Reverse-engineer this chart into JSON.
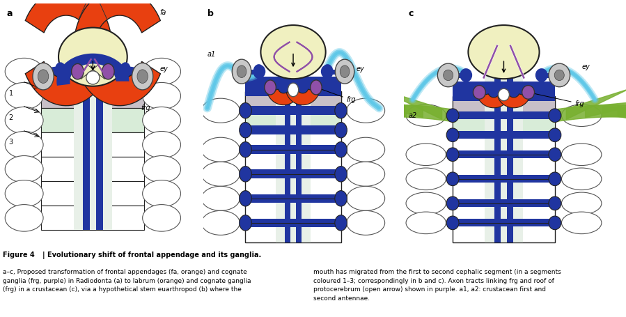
{
  "figure_title": "Figure 4 | Evolutionary shift of frontal appendage and its ganglia.",
  "caption_line1": "a–c, Proposed transformation of frontal appendages (fa, orange) and cognate",
  "caption_line2": "ganglia (frg, purple) in Radiodonta (a) to labrum (orange) and cognate ganglia",
  "caption_line3": "(frg) in a crustacean (c), via a hypothetical stem euarthropod (b) where the",
  "caption_right1": "mouth has migrated from the first to second cephalic segment (in a segments",
  "caption_right2": "coloured 1–3; correspondingly in b and c). Axon tracts linking frg and roof of",
  "caption_right3": "protocerebrum (open arrow) shown in purple. a1, a2: crustacean first and",
  "caption_right4": "second antennae.",
  "bg_color": "#ffffff",
  "dark_blue": "#2035a0",
  "med_blue": "#3050b8",
  "light_blue_ant": "#60c8e8",
  "orange": "#e84010",
  "purple": "#9050a8",
  "gray_eye": "#888888",
  "light_gray": "#c8c8c8",
  "seg1_color": "#c8c0c8",
  "seg2_color": "#d8ecd8",
  "seg3_color": "#f0f0f0",
  "pale_yellow": "#f0f0c0",
  "green_append": "#78b030",
  "body_outline": "#222222",
  "inner_col_color": "#e8f0e8"
}
